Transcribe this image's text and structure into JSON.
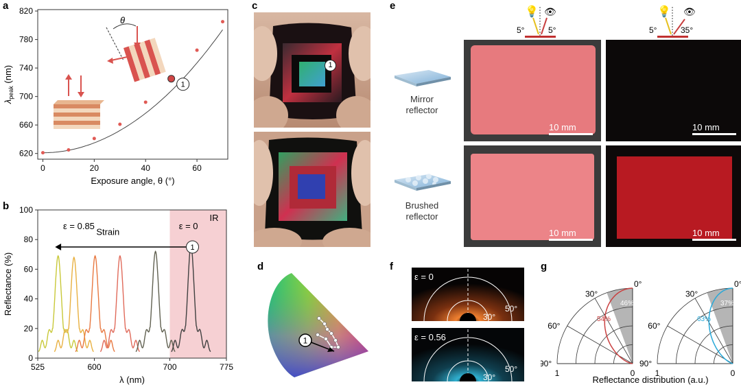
{
  "panel_labels": {
    "a": "a",
    "b": "b",
    "c": "c",
    "d": "d",
    "e": "e",
    "f": "f",
    "g": "g"
  },
  "colors": {
    "curve_red": "#d9534f",
    "ir_band": "#f6d0d3",
    "point_red": "#e05a55",
    "polar_red": "#c94040",
    "polar_blue": "#27a8d8",
    "grey_sector": "#b5b5b5"
  },
  "chart_data": [
    {
      "type": "line",
      "panel": "a",
      "x": [
        0,
        10,
        20,
        30,
        40,
        50,
        60,
        70
      ],
      "y": [
        621,
        625,
        641,
        661,
        692,
        725,
        765,
        805
      ],
      "highlight_point": {
        "x": 50,
        "y": 725,
        "label": "1"
      },
      "xlabel": "Exposure angle, θ (°)",
      "ylabel_main": "λ",
      "ylabel_sub": "peak",
      "ylabel_unit": "(nm)",
      "xticks": [
        "0",
        "20",
        "40",
        "60"
      ],
      "yticks": [
        "620",
        "660",
        "700",
        "740",
        "780",
        "820"
      ],
      "xlim": [
        -2,
        72
      ],
      "ylim": [
        612,
        822
      ],
      "annotation_theta": "θ"
    },
    {
      "type": "line",
      "panel": "b",
      "xlabel": "λ (nm)",
      "ylabel": "Reflectance (%)",
      "xticks": [
        "525",
        "600",
        "700",
        "775"
      ],
      "yticks": [
        "0",
        "20",
        "40",
        "60",
        "80",
        "100"
      ],
      "xlim": [
        525,
        775
      ],
      "ylim": [
        0,
        100
      ],
      "ir_label": "IR",
      "strain_label": "Strain",
      "eps_left": "ε = 0.85",
      "eps_right": "ε = 0",
      "marker": "1",
      "series": [
        {
          "color": "#c8c838",
          "peak_x": 552,
          "peak_y": 65
        },
        {
          "color": "#e8b040",
          "peak_x": 573,
          "peak_y": 64
        },
        {
          "color": "#e87840",
          "peak_x": 601,
          "peak_y": 65
        },
        {
          "color": "#e06a5a",
          "peak_x": 634,
          "peak_y": 65
        },
        {
          "color": "#606050",
          "peak_x": 681,
          "peak_y": 68
        },
        {
          "color": "#404040",
          "peak_x": 728,
          "peak_y": 72
        }
      ]
    },
    {
      "type": "polar",
      "panel": "g",
      "plots": [
        {
          "percent_curve": "54%",
          "percent_grey": "46%",
          "angles": [
            "0°",
            "30°",
            "60°",
            "90°"
          ],
          "r_labels": [
            "1",
            "0"
          ],
          "curve_color": "#c94040"
        },
        {
          "percent_curve": "63%",
          "percent_grey": "37%",
          "angles": [
            "0°",
            "30°",
            "60°",
            "90°"
          ],
          "r_labels": [
            "1",
            "0"
          ],
          "curve_color": "#27a8d8"
        }
      ],
      "xlabel": "Reflectance distribution (a.u.)"
    }
  ],
  "panel_c": {
    "marker": "1"
  },
  "panel_d": {
    "marker": "1"
  },
  "panel_e": {
    "header_left": {
      "angle_in": "5°",
      "angle_out": "5°"
    },
    "header_right": {
      "angle_in": "5°",
      "angle_out": "35°"
    },
    "row1_label": [
      "Mirror",
      "reflector"
    ],
    "row2_label": [
      "Brushed",
      "reflector"
    ],
    "scale": "10 mm"
  },
  "panel_f": {
    "eps_top": "ε = 0",
    "eps_bottom": "ε = 0.56",
    "ring_50": "50°",
    "ring_30": "30°"
  }
}
